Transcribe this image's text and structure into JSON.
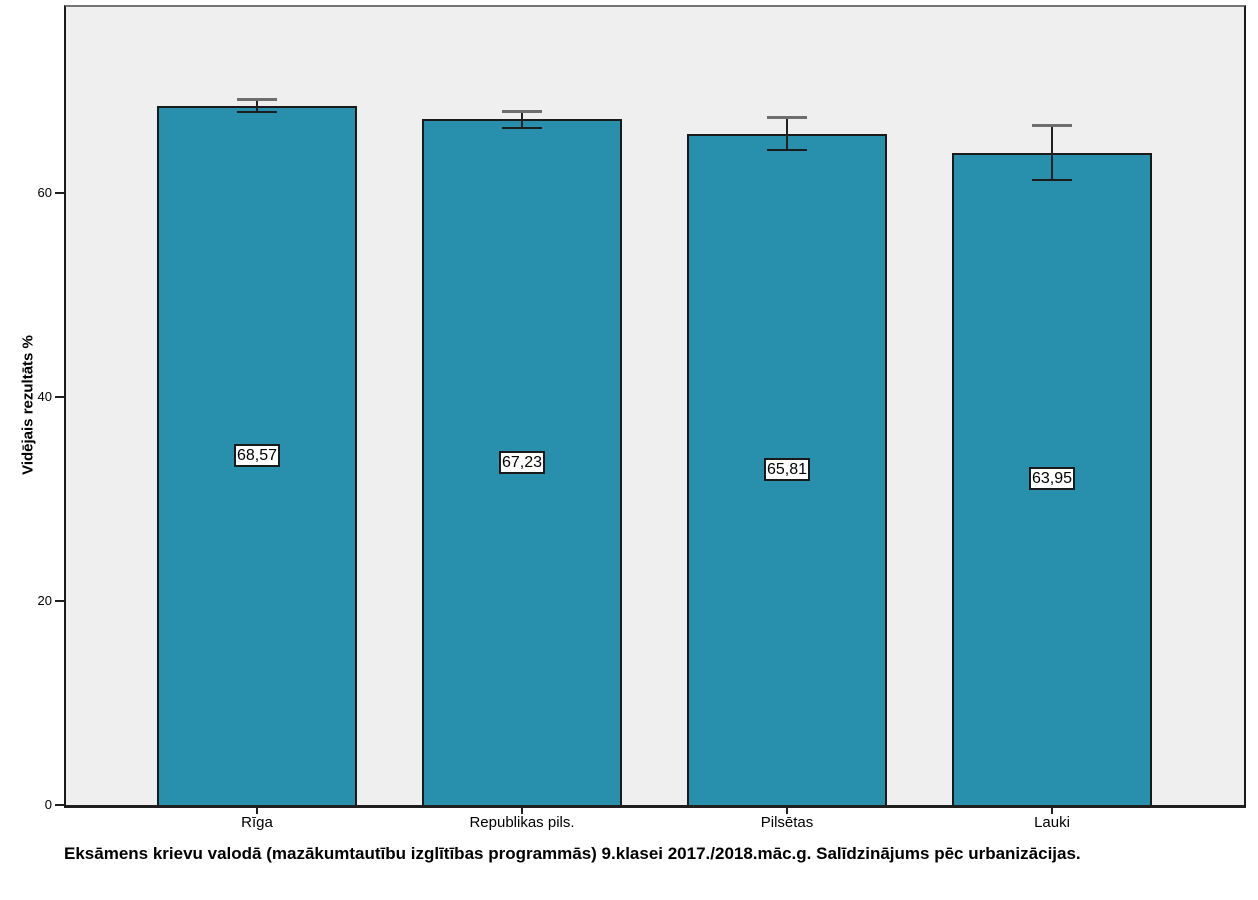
{
  "chart_data": {
    "type": "bar",
    "title": "Eksāmens krievu valodā (mazākumtautību izglītības programmās) 9.klasei 2017./2018.māc.g. Salīdzinājums pēc urbanizācijas.",
    "ylabel": "Vidējais rezultāts %",
    "xlabel": "",
    "categories": [
      "Rīga",
      "Republikas pils.",
      "Pilsētas",
      "Lauki"
    ],
    "values": [
      68.57,
      67.23,
      65.81,
      63.95
    ],
    "value_labels": [
      "68,57",
      "67,23",
      "65,81",
      "63,95"
    ],
    "error_upper": [
      69.22,
      68.08,
      67.41,
      66.65
    ],
    "error_lower": [
      67.92,
      66.38,
      64.21,
      61.25
    ],
    "ylim": [
      0,
      78.4
    ],
    "yticks": [
      0,
      20,
      40,
      60
    ],
    "ytick_labels": [
      "0",
      "20",
      "40",
      "60"
    ],
    "grid": false,
    "legend_position": "none",
    "colors": {
      "bar_fill": "#2890AC",
      "bar_border": "#1A1A1A",
      "plot_background": "#EFEFEF",
      "page_background": "#FFFFFF",
      "error_line": "#222222",
      "error_cap_top": "#6E6E6E",
      "error_cap_bottom": "#1C1C1C",
      "frame_top_border": "#757575",
      "frame_border": "#1A1A1A",
      "text": "#000000"
    }
  }
}
